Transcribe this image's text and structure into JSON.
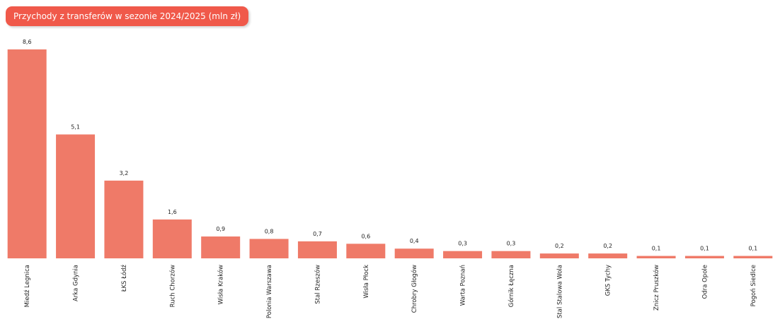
{
  "chart_data": {
    "type": "bar",
    "title": "Przychody z transferów w sezonie 2024/2025 (mln zł)",
    "categories": [
      "Miedź Legnica",
      "Arka Gdynia",
      "ŁKS Łódź",
      "Ruch Chorzów",
      "Wisła Kraków",
      "Polonia Warszawa",
      "Stal Rzeszów",
      "Wisła Płock",
      "Chrobry Głogów",
      "Warta Poznań",
      "Górnik Łęczna",
      "Stal Stalowa Wola",
      "GKS Tychy",
      "Znicz Pruszków",
      "Odra Opole",
      "Pogoń Siedlce"
    ],
    "values": [
      8.6,
      5.1,
      3.2,
      1.6,
      0.9,
      0.8,
      0.7,
      0.6,
      0.4,
      0.3,
      0.3,
      0.2,
      0.2,
      0.1,
      0.1,
      0.1
    ],
    "value_labels": [
      "8,6",
      "5,1",
      "3,2",
      "1,6",
      "0,9",
      "0,8",
      "0,7",
      "0,6",
      "0,4",
      "0,3",
      "0,3",
      "0,2",
      "0,2",
      "0,1",
      "0,1",
      "0,1"
    ],
    "color": "#ef7a68"
  }
}
